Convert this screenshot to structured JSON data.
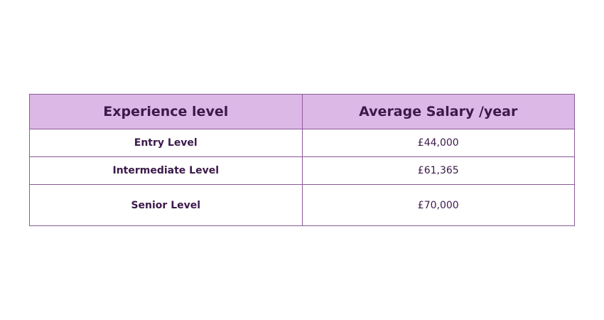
{
  "table": {
    "headers": [
      "Experience level",
      "Average Salary /year"
    ],
    "rows": [
      {
        "level": "Entry Level",
        "salary": "£44,000"
      },
      {
        "level": "Intermediate Level",
        "salary": "£61,365"
      },
      {
        "level": "Senior Level",
        "salary": "£70,000"
      }
    ],
    "colors": {
      "header_bg": "#dcb8e6",
      "border": "#8a5a98",
      "text": "#3b1a4a"
    }
  }
}
